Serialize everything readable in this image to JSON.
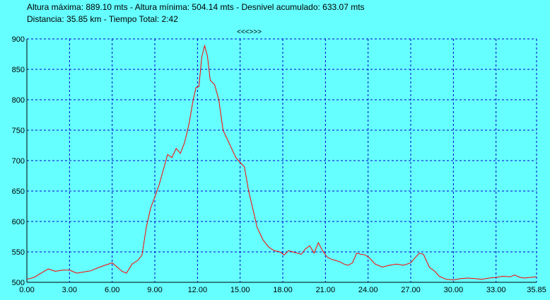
{
  "header": {
    "line1": "Altura máxima: 889.10 mts - Altura mínima: 504.14 mts - Desnivel acumulado: 633.07 mts",
    "line2": "Distancia: 35.85 km - Tiempo Total: 2:42",
    "nav": "<<<>>>"
  },
  "colors": {
    "background": "#66ffff",
    "grid": "#0000cc",
    "line": "#ff0000",
    "axis": "#000000"
  },
  "chart_data": {
    "type": "line",
    "title": "",
    "xlabel": "",
    "ylabel": "",
    "xlim": [
      0,
      35.85
    ],
    "ylim": [
      500,
      900
    ],
    "grid": true,
    "x_ticks": [
      "0.00",
      "3.00",
      "6.00",
      "9.00",
      "12.00",
      "15.00",
      "18.00",
      "21.00",
      "24.00",
      "27.00",
      "30.00",
      "33.00",
      "35.85"
    ],
    "y_ticks": [
      "500",
      "550",
      "600",
      "650",
      "700",
      "750",
      "800",
      "850",
      "900"
    ],
    "series": [
      {
        "color": "#ff0000",
        "x": [
          0.0,
          0.5,
          1.0,
          1.5,
          2.0,
          2.5,
          3.0,
          3.5,
          4.0,
          4.5,
          5.0,
          5.5,
          6.0,
          6.3,
          6.7,
          7.0,
          7.4,
          7.8,
          8.1,
          8.4,
          8.7,
          9.0,
          9.3,
          9.6,
          9.9,
          10.2,
          10.5,
          10.8,
          11.1,
          11.4,
          11.7,
          11.9,
          12.1,
          12.3,
          12.5,
          12.7,
          12.9,
          13.2,
          13.5,
          13.8,
          14.1,
          14.4,
          14.7,
          15.0,
          15.3,
          15.6,
          15.9,
          16.2,
          16.6,
          17.0,
          17.4,
          17.8,
          18.1,
          18.4,
          18.7,
          19.0,
          19.3,
          19.6,
          19.9,
          20.2,
          20.5,
          20.8,
          21.1,
          21.4,
          21.7,
          22.0,
          22.3,
          22.6,
          22.9,
          23.2,
          23.5,
          23.8,
          24.1,
          24.5,
          25.0,
          25.5,
          26.0,
          26.5,
          27.0,
          27.3,
          27.6,
          27.9,
          28.3,
          28.7,
          29.0,
          29.5,
          30.0,
          30.5,
          31.0,
          31.5,
          32.0,
          32.5,
          33.0,
          33.5,
          34.0,
          34.3,
          34.7,
          35.0,
          35.4,
          35.85
        ],
        "y": [
          505,
          508,
          515,
          522,
          518,
          520,
          520,
          515,
          517,
          519,
          524,
          528,
          532,
          526,
          518,
          515,
          530,
          536,
          545,
          590,
          622,
          640,
          660,
          685,
          710,
          705,
          720,
          712,
          730,
          760,
          800,
          820,
          822,
          870,
          889,
          872,
          832,
          825,
          800,
          750,
          735,
          720,
          705,
          697,
          690,
          650,
          620,
          590,
          570,
          558,
          552,
          550,
          545,
          552,
          550,
          548,
          546,
          555,
          560,
          548,
          565,
          552,
          542,
          538,
          536,
          534,
          530,
          528,
          532,
          548,
          546,
          545,
          540,
          530,
          525,
          528,
          530,
          528,
          532,
          540,
          548,
          546,
          525,
          518,
          510,
          505,
          504,
          506,
          507,
          506,
          505,
          507,
          508,
          510,
          509,
          512,
          508,
          507,
          508,
          509
        ]
      }
    ]
  }
}
